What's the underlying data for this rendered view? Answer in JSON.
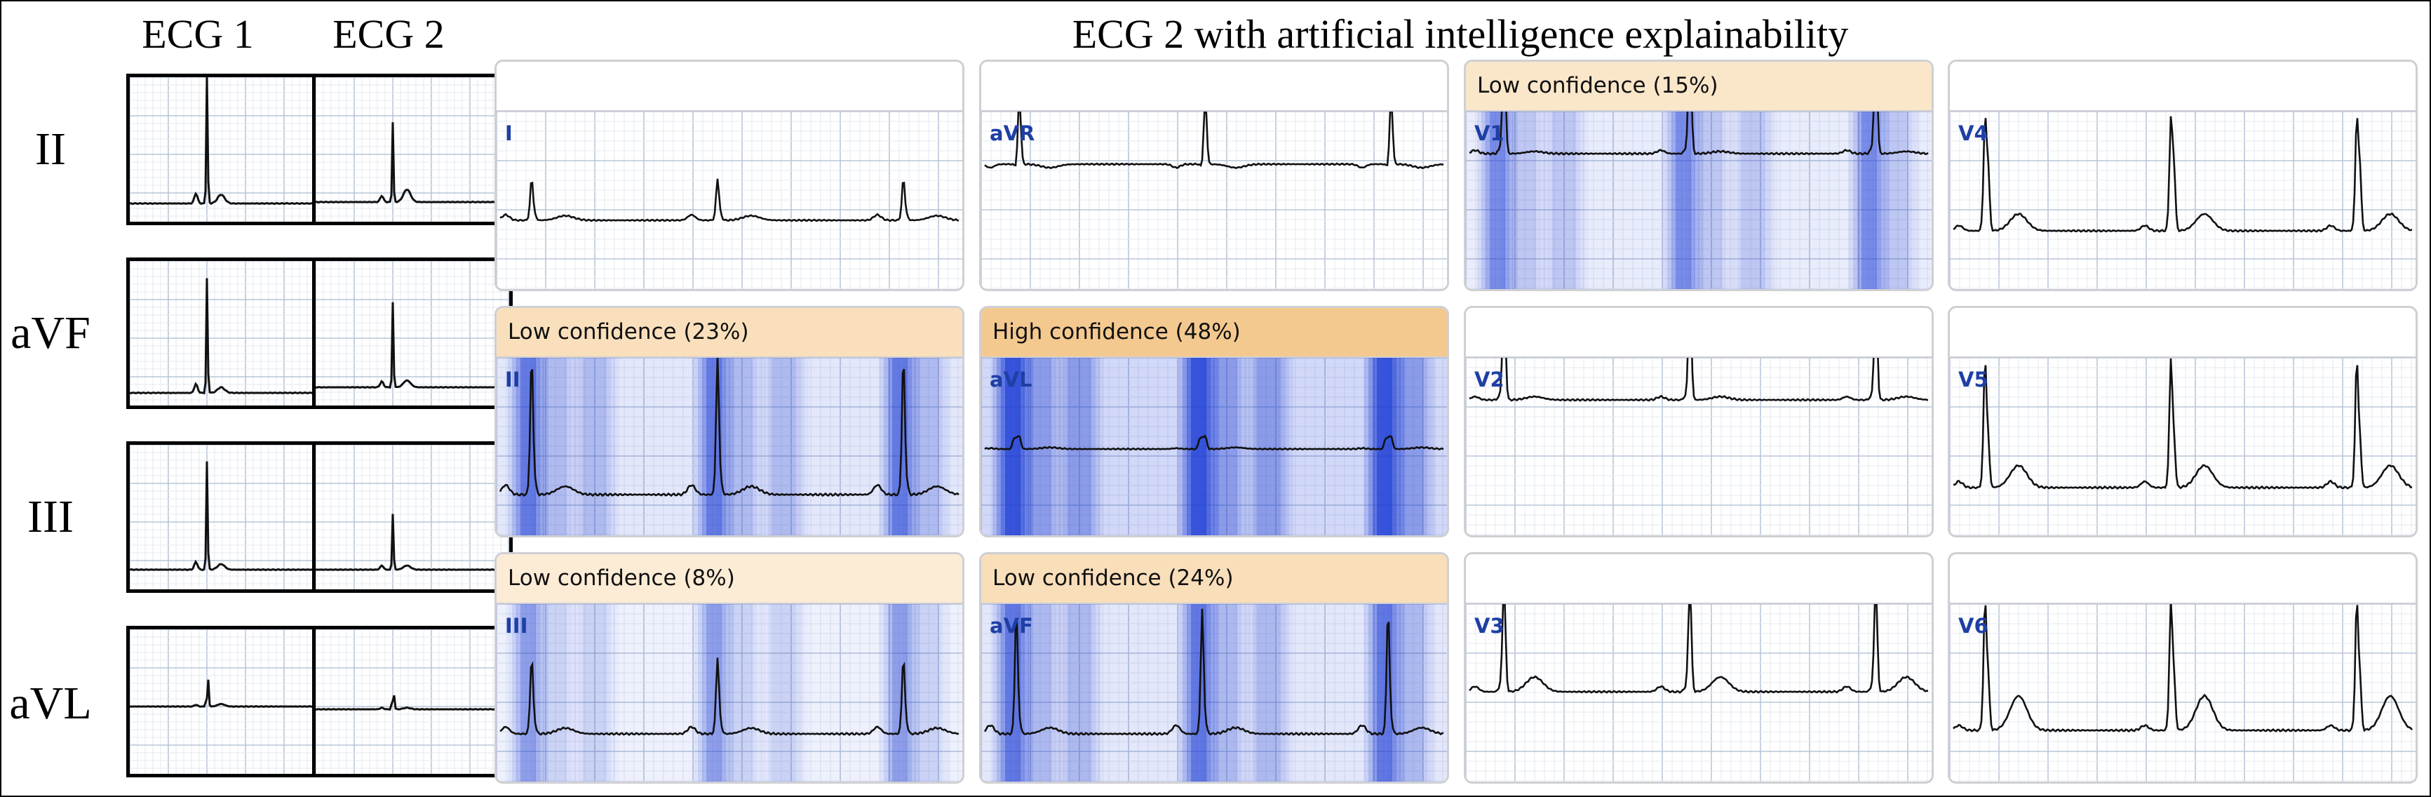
{
  "headers": {
    "ecg1": "ECG 1",
    "ecg2": "ECG 2",
    "explain": "ECG 2 with artificial intelligence explainability"
  },
  "left_rows": [
    {
      "label": "II"
    },
    {
      "label": "aVF"
    },
    {
      "label": "III"
    },
    {
      "label": "aVL"
    }
  ],
  "panels": [
    {
      "lead": "I",
      "banner": "",
      "confidence": null
    },
    {
      "lead": "aVR",
      "banner": "",
      "confidence": null
    },
    {
      "lead": "V1",
      "banner": "Low confidence (15%)",
      "confidence": 15
    },
    {
      "lead": "V4",
      "banner": "",
      "confidence": null
    },
    {
      "lead": "II",
      "banner": "Low confidence (23%)",
      "confidence": 23
    },
    {
      "lead": "aVL",
      "banner": "High confidence (48%)",
      "confidence": 48
    },
    {
      "lead": "V2",
      "banner": "",
      "confidence": null
    },
    {
      "lead": "V5",
      "banner": "",
      "confidence": null
    },
    {
      "lead": "III",
      "banner": "Low confidence (8%)",
      "confidence": 8
    },
    {
      "lead": "aVF",
      "banner": "Low confidence (24%)",
      "confidence": 24
    },
    {
      "lead": "V3",
      "banner": "",
      "confidence": null
    },
    {
      "lead": "V6",
      "banner": "",
      "confidence": null
    }
  ],
  "colors": {
    "grid_major": "#b9c6d8",
    "grid_minor": "#e3e9f2",
    "trace": "#111111",
    "lead_label": "#1e3fa4",
    "heatmap": "#1c3dd6",
    "banner_scale": [
      "#fdf3e4",
      "#f4c98f"
    ]
  }
}
